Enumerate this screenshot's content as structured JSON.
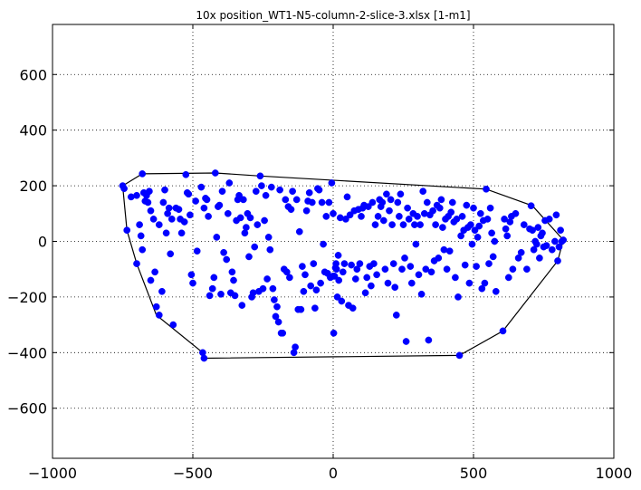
{
  "chart_data": {
    "type": "scatter",
    "title": "10x position_WT1-N5-column-2-slice-3.xlsx   [1-m1]",
    "xlabel": "",
    "ylabel": "",
    "xlim": [
      -1000,
      1000
    ],
    "ylim": [
      -780,
      780
    ],
    "xticks": [
      -1000,
      -500,
      0,
      500,
      1000
    ],
    "yticks": [
      -600,
      -400,
      -200,
      0,
      200,
      400,
      600
    ],
    "xtick_labels": [
      "−1000",
      "−500",
      "0",
      "500",
      "1000"
    ],
    "ytick_labels": [
      "−600",
      "−400",
      "−200",
      "0",
      "200",
      "400",
      "600"
    ],
    "grid": true,
    "grid_style": "dotted",
    "point_color": "#0000ff",
    "hull_color": "#000000",
    "hull": [
      [
        -750,
        200
      ],
      [
        -680,
        243
      ],
      [
        -420,
        246
      ],
      [
        -260,
        235
      ],
      [
        545,
        188
      ],
      [
        710,
        128
      ],
      [
        820,
        5
      ],
      [
        800,
        -70
      ],
      [
        605,
        -322
      ],
      [
        450,
        -410
      ],
      [
        -460,
        -420
      ],
      [
        -465,
        -400
      ],
      [
        -630,
        -265
      ],
      [
        -700,
        -80
      ],
      [
        -735,
        40
      ],
      [
        -750,
        200
      ]
    ],
    "points": [
      [
        -750,
        200
      ],
      [
        -745,
        190
      ],
      [
        -735,
        40
      ],
      [
        -720,
        160
      ],
      [
        -700,
        165
      ],
      [
        -700,
        -80
      ],
      [
        -690,
        60
      ],
      [
        -685,
        20
      ],
      [
        -680,
        243
      ],
      [
        -680,
        -30
      ],
      [
        -675,
        175
      ],
      [
        -670,
        145
      ],
      [
        -665,
        165
      ],
      [
        -660,
        140
      ],
      [
        -655,
        180
      ],
      [
        -650,
        -140
      ],
      [
        -650,
        110
      ],
      [
        -640,
        80
      ],
      [
        -635,
        -110
      ],
      [
        -630,
        -235
      ],
      [
        -620,
        -265
      ],
      [
        -620,
        60
      ],
      [
        -610,
        -180
      ],
      [
        -605,
        140
      ],
      [
        -600,
        185
      ],
      [
        -595,
        30
      ],
      [
        -590,
        100
      ],
      [
        -585,
        120
      ],
      [
        -580,
        -45
      ],
      [
        -575,
        80
      ],
      [
        -570,
        -300
      ],
      [
        -560,
        120
      ],
      [
        -550,
        115
      ],
      [
        -545,
        80
      ],
      [
        -540,
        30
      ],
      [
        -530,
        70
      ],
      [
        -525,
        240
      ],
      [
        -520,
        175
      ],
      [
        -515,
        170
      ],
      [
        -510,
        95
      ],
      [
        -505,
        -120
      ],
      [
        -500,
        -150
      ],
      [
        -490,
        145
      ],
      [
        -485,
        -35
      ],
      [
        -470,
        195
      ],
      [
        -465,
        -400
      ],
      [
        -460,
        -420
      ],
      [
        -460,
        120
      ],
      [
        -455,
        155
      ],
      [
        -450,
        150
      ],
      [
        -445,
        90
      ],
      [
        -440,
        -195
      ],
      [
        -430,
        -170
      ],
      [
        -425,
        -130
      ],
      [
        -420,
        246
      ],
      [
        -415,
        15
      ],
      [
        -410,
        125
      ],
      [
        -405,
        130
      ],
      [
        -400,
        -190
      ],
      [
        -395,
        180
      ],
      [
        -390,
        -40
      ],
      [
        -380,
        -65
      ],
      [
        -375,
        100
      ],
      [
        -370,
        210
      ],
      [
        -365,
        -185
      ],
      [
        -360,
        -110
      ],
      [
        -355,
        -140
      ],
      [
        -350,
        -195
      ],
      [
        -345,
        75
      ],
      [
        -340,
        150
      ],
      [
        -335,
        165
      ],
      [
        -330,
        85
      ],
      [
        -325,
        -230
      ],
      [
        -320,
        150
      ],
      [
        -315,
        30
      ],
      [
        -310,
        50
      ],
      [
        -305,
        100
      ],
      [
        -300,
        -55
      ],
      [
        -295,
        85
      ],
      [
        -290,
        -200
      ],
      [
        -285,
        -185
      ],
      [
        -280,
        -20
      ],
      [
        -275,
        180
      ],
      [
        -270,
        60
      ],
      [
        -265,
        -180
      ],
      [
        -260,
        235
      ],
      [
        -255,
        200
      ],
      [
        -250,
        -170
      ],
      [
        -245,
        75
      ],
      [
        -240,
        165
      ],
      [
        -235,
        -135
      ],
      [
        -230,
        15
      ],
      [
        -225,
        -30
      ],
      [
        -220,
        195
      ],
      [
        -215,
        -170
      ],
      [
        -210,
        -210
      ],
      [
        -205,
        -270
      ],
      [
        -200,
        -235
      ],
      [
        -195,
        -290
      ],
      [
        -190,
        185
      ],
      [
        -185,
        -330
      ],
      [
        -180,
        -330
      ],
      [
        -175,
        -100
      ],
      [
        -170,
        150
      ],
      [
        -165,
        -110
      ],
      [
        -160,
        125
      ],
      [
        -155,
        -130
      ],
      [
        -150,
        115
      ],
      [
        -145,
        180
      ],
      [
        -140,
        -400
      ],
      [
        -135,
        -380
      ],
      [
        -130,
        150
      ],
      [
        -125,
        -245
      ],
      [
        -120,
        35
      ],
      [
        -115,
        -245
      ],
      [
        -110,
        -90
      ],
      [
        -105,
        -180
      ],
      [
        -100,
        -120
      ],
      [
        -95,
        110
      ],
      [
        -90,
        145
      ],
      [
        -85,
        175
      ],
      [
        -80,
        -160
      ],
      [
        -75,
        140
      ],
      [
        -70,
        -80
      ],
      [
        -65,
        -240
      ],
      [
        -60,
        -175
      ],
      [
        -55,
        190
      ],
      [
        -50,
        185
      ],
      [
        -45,
        -150
      ],
      [
        -40,
        140
      ],
      [
        -35,
        -10
      ],
      [
        -30,
        -110
      ],
      [
        -25,
        90
      ],
      [
        -20,
        -115
      ],
      [
        -15,
        140
      ],
      [
        -10,
        -130
      ],
      [
        -5,
        210
      ],
      [
        0,
        100
      ],
      [
        0,
        -125
      ],
      [
        2,
        -330
      ],
      [
        5,
        -125
      ],
      [
        8,
        -95
      ],
      [
        10,
        -80
      ],
      [
        12,
        -100
      ],
      [
        15,
        -200
      ],
      [
        18,
        -50
      ],
      [
        20,
        -140
      ],
      [
        25,
        85
      ],
      [
        30,
        -215
      ],
      [
        35,
        -110
      ],
      [
        40,
        -80
      ],
      [
        45,
        80
      ],
      [
        50,
        160
      ],
      [
        55,
        -230
      ],
      [
        60,
        95
      ],
      [
        65,
        -85
      ],
      [
        70,
        -240
      ],
      [
        75,
        110
      ],
      [
        80,
        -135
      ],
      [
        85,
        -100
      ],
      [
        90,
        115
      ],
      [
        95,
        -80
      ],
      [
        100,
        90
      ],
      [
        105,
        120
      ],
      [
        110,
        130
      ],
      [
        115,
        -185
      ],
      [
        120,
        -130
      ],
      [
        125,
        125
      ],
      [
        130,
        -90
      ],
      [
        135,
        -160
      ],
      [
        140,
        140
      ],
      [
        145,
        -80
      ],
      [
        150,
        60
      ],
      [
        155,
        -120
      ],
      [
        160,
        90
      ],
      [
        165,
        150
      ],
      [
        170,
        125
      ],
      [
        175,
        140
      ],
      [
        180,
        75
      ],
      [
        185,
        -100
      ],
      [
        190,
        170
      ],
      [
        195,
        -150
      ],
      [
        200,
        110
      ],
      [
        205,
        150
      ],
      [
        210,
        60
      ],
      [
        215,
        -80
      ],
      [
        220,
        -165
      ],
      [
        225,
        -265
      ],
      [
        230,
        140
      ],
      [
        235,
        90
      ],
      [
        240,
        170
      ],
      [
        245,
        -100
      ],
      [
        250,
        60
      ],
      [
        255,
        -60
      ],
      [
        260,
        -360
      ],
      [
        265,
        120
      ],
      [
        270,
        80
      ],
      [
        275,
        -90
      ],
      [
        280,
        -150
      ],
      [
        285,
        100
      ],
      [
        290,
        60
      ],
      [
        295,
        -10
      ],
      [
        300,
        90
      ],
      [
        305,
        -120
      ],
      [
        310,
        60
      ],
      [
        315,
        -190
      ],
      [
        320,
        180
      ],
      [
        325,
        100
      ],
      [
        330,
        -100
      ],
      [
        335,
        140
      ],
      [
        340,
        -355
      ],
      [
        345,
        95
      ],
      [
        350,
        -110
      ],
      [
        355,
        110
      ],
      [
        360,
        -70
      ],
      [
        365,
        60
      ],
      [
        370,
        130
      ],
      [
        375,
        -60
      ],
      [
        380,
        120
      ],
      [
        385,
        150
      ],
      [
        390,
        50
      ],
      [
        395,
        -30
      ],
      [
        400,
        80
      ],
      [
        405,
        -100
      ],
      [
        410,
        90
      ],
      [
        415,
        -35
      ],
      [
        420,
        105
      ],
      [
        425,
        140
      ],
      [
        430,
        70
      ],
      [
        435,
        -130
      ],
      [
        440,
        80
      ],
      [
        445,
        -200
      ],
      [
        450,
        -410
      ],
      [
        455,
        20
      ],
      [
        460,
        90
      ],
      [
        465,
        40
      ],
      [
        470,
        -85
      ],
      [
        475,
        130
      ],
      [
        480,
        50
      ],
      [
        485,
        -150
      ],
      [
        490,
        60
      ],
      [
        495,
        -10
      ],
      [
        500,
        120
      ],
      [
        505,
        40
      ],
      [
        510,
        -90
      ],
      [
        515,
        15
      ],
      [
        520,
        55
      ],
      [
        525,
        100
      ],
      [
        530,
        -170
      ],
      [
        535,
        75
      ],
      [
        540,
        -150
      ],
      [
        545,
        188
      ],
      [
        550,
        80
      ],
      [
        555,
        -80
      ],
      [
        560,
        120
      ],
      [
        565,
        30
      ],
      [
        570,
        -55
      ],
      [
        575,
        0
      ],
      [
        580,
        -180
      ],
      [
        605,
        -322
      ],
      [
        610,
        80
      ],
      [
        615,
        45
      ],
      [
        620,
        20
      ],
      [
        625,
        -130
      ],
      [
        630,
        70
      ],
      [
        635,
        90
      ],
      [
        640,
        -100
      ],
      [
        650,
        100
      ],
      [
        660,
        -60
      ],
      [
        670,
        -40
      ],
      [
        680,
        60
      ],
      [
        690,
        -100
      ],
      [
        700,
        45
      ],
      [
        705,
        128
      ],
      [
        710,
        40
      ],
      [
        715,
        -30
      ],
      [
        720,
        0
      ],
      [
        725,
        -10
      ],
      [
        730,
        50
      ],
      [
        735,
        -60
      ],
      [
        740,
        20
      ],
      [
        745,
        30
      ],
      [
        750,
        -20
      ],
      [
        755,
        75
      ],
      [
        760,
        -15
      ],
      [
        770,
        80
      ],
      [
        780,
        -30
      ],
      [
        790,
        0
      ],
      [
        795,
        95
      ],
      [
        800,
        -70
      ],
      [
        805,
        -20
      ],
      [
        810,
        40
      ],
      [
        815,
        0
      ],
      [
        820,
        5
      ]
    ]
  }
}
